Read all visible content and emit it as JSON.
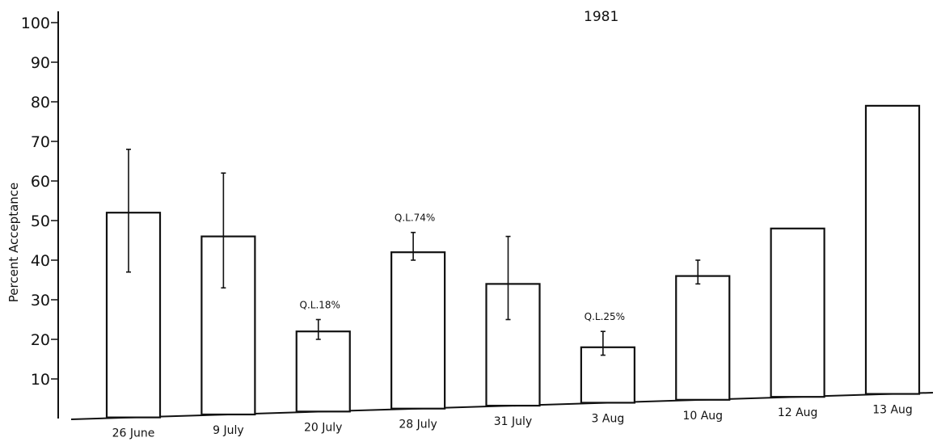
{
  "chart_data": {
    "type": "bar",
    "title": "1981",
    "xlabel": "",
    "ylabel": "Percent Acceptance",
    "ylim": [
      0,
      100
    ],
    "yticks": [
      10,
      20,
      30,
      40,
      50,
      60,
      70,
      80,
      90,
      100
    ],
    "categories": [
      "26 June",
      "9 July",
      "20 July",
      "28 July",
      "31 July",
      "3 Aug",
      "10 Aug",
      "12 Aug",
      "13 Aug"
    ],
    "values": [
      52,
      46,
      22,
      42,
      34,
      18,
      36,
      48,
      79
    ],
    "error_low": [
      37,
      33,
      20,
      40,
      25,
      16,
      34,
      48,
      79
    ],
    "error_high": [
      68,
      62,
      25,
      47,
      46,
      22,
      40,
      48,
      79
    ],
    "annotations": [
      "",
      "",
      "Q.L.18%",
      "Q.L.74%",
      "",
      "Q.L.25%",
      "",
      "",
      ""
    ],
    "grid": false,
    "legend": "none"
  }
}
